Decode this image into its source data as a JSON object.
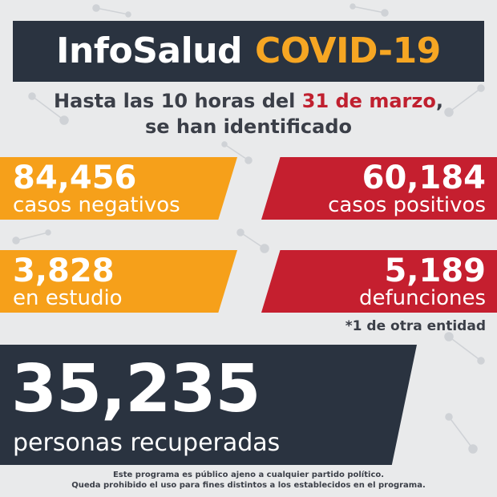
{
  "header": {
    "title_main": "InfoSalud",
    "title_accent": "COVID-19"
  },
  "subtitle": {
    "line1_prefix": "Hasta las 10 horas del",
    "line1_date": "31 de marzo",
    "line1_suffix": ",",
    "line2": "se han identificado"
  },
  "stats": {
    "negativos": {
      "value": "84,456",
      "label": "casos negativos"
    },
    "positivos": {
      "value": "60,184",
      "label": "casos positivos"
    },
    "estudio": {
      "value": "3,828",
      "label": "en estudio"
    },
    "defunciones": {
      "value": "5,189",
      "label": "defunciones"
    }
  },
  "note": "*1 de otra entidad",
  "recovered": {
    "value": "35,235",
    "label": "personas recuperadas"
  },
  "footer": {
    "line1": "Este programa es público ajeno a cualquier partido político.",
    "line2": "Queda prohibido el uso para fines distintos a los establecidos en el programa."
  },
  "colors": {
    "dark": "#2a3340",
    "orange": "#f6a01a",
    "red": "#c51f2f",
    "accent": "#f6a623",
    "background": "#e9eaeb"
  }
}
